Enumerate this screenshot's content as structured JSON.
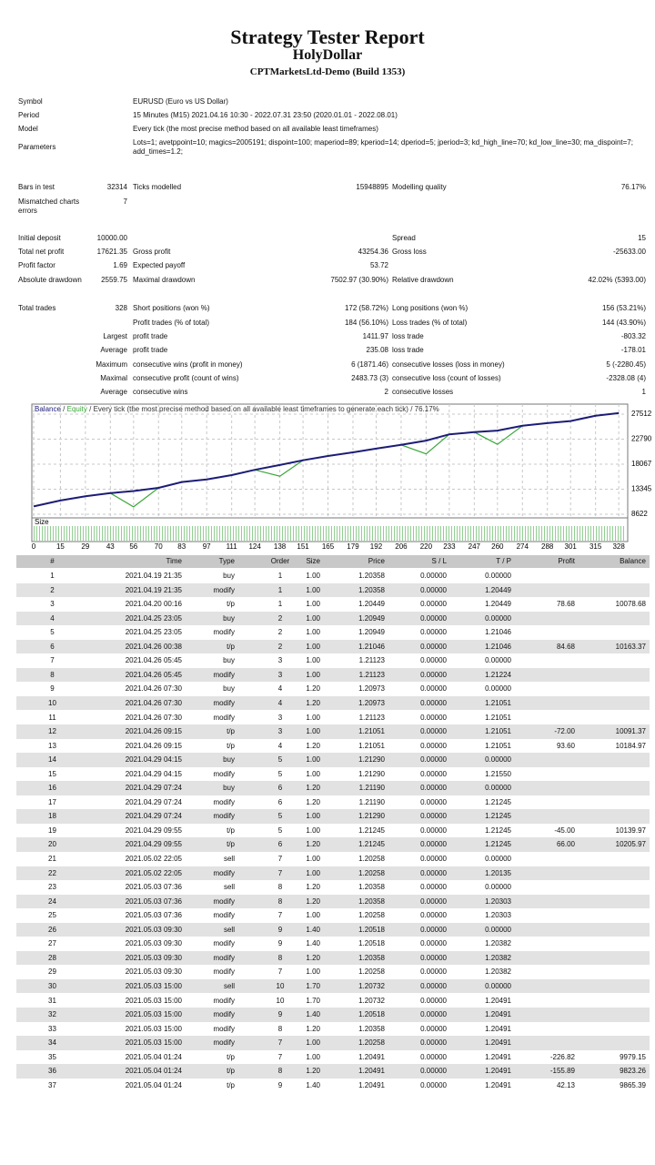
{
  "header": {
    "title": "Strategy Tester Report",
    "expert": "HolyDollar",
    "build": "CPTMarketsLtd-Demo (Build 1353)"
  },
  "settings": [
    [
      "Symbol",
      "EURUSD (Euro vs US Dollar)"
    ],
    [
      "Period",
      "15 Minutes (M15) 2021.04.16 10:30 - 2022.07.31 23:50 (2020.01.01 - 2022.08.01)"
    ],
    [
      "Model",
      "Every tick (the most precise method based on all available least timeframes)"
    ],
    [
      "Parameters",
      "Lots=1; avetppoint=10; magics=2005191; dispoint=100; maperiod=89; kperiod=14; dperiod=5; jperiod=3; kd_high_line=70; kd_low_line=30; ma_dispoint=7; add_times=1.2;"
    ]
  ],
  "stats": [
    [
      "Bars in test",
      "32314",
      "Ticks modelled",
      "15948895",
      "Modelling quality",
      "76.17%"
    ],
    [
      "Mismatched charts errors",
      "7",
      null,
      null,
      null,
      null
    ],
    [
      "Initial deposit",
      "10000.00",
      null,
      null,
      "Spread",
      "15"
    ],
    [
      "Total net profit",
      "17621.35",
      "Gross profit",
      "43254.36",
      "Gross loss",
      "-25633.00"
    ],
    [
      "Profit factor",
      "1.69",
      "Expected payoff",
      "53.72",
      null,
      null
    ],
    [
      "Absolute drawdown",
      "2559.75",
      "Maximal drawdown",
      "7502.97 (30.90%)",
      "Relative drawdown",
      "42.02% (5393.00)"
    ],
    [
      "Total trades",
      "328",
      "Short positions (won %)",
      "172 (58.72%)",
      "Long positions (won %)",
      "156 (53.21%)"
    ],
    [
      null,
      null,
      "Profit trades (% of total)",
      "184 (56.10%)",
      "Loss trades (% of total)",
      "144 (43.90%)"
    ],
    [
      null,
      "Largest",
      "profit trade",
      "1411.97",
      "loss trade",
      "-803.32"
    ],
    [
      null,
      "Average",
      "profit trade",
      "235.08",
      "loss trade",
      "-178.01"
    ],
    [
      null,
      "Maximum",
      "consecutive wins (profit in money)",
      "6 (1871.46)",
      "consecutive losses (loss in money)",
      "5 (-2280.45)"
    ],
    [
      null,
      "Maximal",
      "consecutive profit (count of wins)",
      "2483.73 (3)",
      "consecutive loss (count of losses)",
      "-2328.08 (4)"
    ],
    [
      null,
      "Average",
      "consecutive wins",
      "2",
      "consecutive losses",
      "1"
    ]
  ],
  "chart_data": {
    "type": "line",
    "legend_separator": "/",
    "caption": "Every tick (the most precise method based on all available least timeframes to generate each tick)",
    "quality": "76.17%",
    "size_label": "Size",
    "x": [
      0,
      15,
      29,
      43,
      56,
      70,
      83,
      97,
      111,
      124,
      138,
      151,
      165,
      179,
      192,
      206,
      220,
      233,
      247,
      260,
      274,
      288,
      301,
      315,
      328
    ],
    "series": [
      {
        "name": "Balance",
        "color": "#1c1c78",
        "values": [
          10100,
          11200,
          12000,
          12600,
          13000,
          13600,
          14700,
          15200,
          16000,
          17000,
          17900,
          18800,
          19600,
          20300,
          21000,
          21700,
          22500,
          23700,
          24100,
          24400,
          25300,
          25800,
          26200,
          27200,
          27700
        ]
      },
      {
        "name": "Equity",
        "color": "#3aa63a",
        "values": [
          10100,
          11200,
          12000,
          12600,
          10000,
          13600,
          14700,
          15200,
          16000,
          17000,
          15800,
          18800,
          19600,
          20300,
          21000,
          21700,
          20000,
          23700,
          24100,
          21800,
          25300,
          25800,
          26200,
          27200,
          27700
        ]
      }
    ],
    "xlim": [
      0,
      332
    ],
    "ylim": [
      8100,
      29050
    ],
    "xticks": [
      0,
      15,
      29,
      43,
      56,
      70,
      83,
      97,
      111,
      124,
      138,
      151,
      165,
      179,
      192,
      206,
      220,
      233,
      247,
      260,
      274,
      288,
      301,
      315,
      328
    ],
    "yticks": [
      8622,
      13345,
      18067,
      22790,
      27512
    ],
    "grid": true
  },
  "table": {
    "columns": [
      "#",
      "Time",
      "Type",
      "Order",
      "Size",
      "Price",
      "S / L",
      "T / P",
      "Profit",
      "Balance"
    ],
    "rows": [
      [
        "1",
        "2021.04.19 21:35",
        "buy",
        "1",
        "1.00",
        "1.20358",
        "0.00000",
        "0.00000",
        null,
        null
      ],
      [
        "2",
        "2021.04.19 21:35",
        "modify",
        "1",
        "1.00",
        "1.20358",
        "0.00000",
        "1.20449",
        null,
        null
      ],
      [
        "3",
        "2021.04.20 00:16",
        "t/p",
        "1",
        "1.00",
        "1.20449",
        "0.00000",
        "1.20449",
        "78.68",
        "10078.68"
      ],
      [
        "4",
        "2021.04.25 23:05",
        "buy",
        "2",
        "1.00",
        "1.20949",
        "0.00000",
        "0.00000",
        null,
        null
      ],
      [
        "5",
        "2021.04.25 23:05",
        "modify",
        "2",
        "1.00",
        "1.20949",
        "0.00000",
        "1.21046",
        null,
        null
      ],
      [
        "6",
        "2021.04.26 00:38",
        "t/p",
        "2",
        "1.00",
        "1.21046",
        "0.00000",
        "1.21046",
        "84.68",
        "10163.37"
      ],
      [
        "7",
        "2021.04.26 05:45",
        "buy",
        "3",
        "1.00",
        "1.21123",
        "0.00000",
        "0.00000",
        null,
        null
      ],
      [
        "8",
        "2021.04.26 05:45",
        "modify",
        "3",
        "1.00",
        "1.21123",
        "0.00000",
        "1.21224",
        null,
        null
      ],
      [
        "9",
        "2021.04.26 07:30",
        "buy",
        "4",
        "1.20",
        "1.20973",
        "0.00000",
        "0.00000",
        null,
        null
      ],
      [
        "10",
        "2021.04.26 07:30",
        "modify",
        "4",
        "1.20",
        "1.20973",
        "0.00000",
        "1.21051",
        null,
        null
      ],
      [
        "11",
        "2021.04.26 07:30",
        "modify",
        "3",
        "1.00",
        "1.21123",
        "0.00000",
        "1.21051",
        null,
        null
      ],
      [
        "12",
        "2021.04.26 09:15",
        "t/p",
        "3",
        "1.00",
        "1.21051",
        "0.00000",
        "1.21051",
        "-72.00",
        "10091.37"
      ],
      [
        "13",
        "2021.04.26 09:15",
        "t/p",
        "4",
        "1.20",
        "1.21051",
        "0.00000",
        "1.21051",
        "93.60",
        "10184.97"
      ],
      [
        "14",
        "2021.04.29 04:15",
        "buy",
        "5",
        "1.00",
        "1.21290",
        "0.00000",
        "0.00000",
        null,
        null
      ],
      [
        "15",
        "2021.04.29 04:15",
        "modify",
        "5",
        "1.00",
        "1.21290",
        "0.00000",
        "1.21550",
        null,
        null
      ],
      [
        "16",
        "2021.04.29 07:24",
        "buy",
        "6",
        "1.20",
        "1.21190",
        "0.00000",
        "0.00000",
        null,
        null
      ],
      [
        "17",
        "2021.04.29 07:24",
        "modify",
        "6",
        "1.20",
        "1.21190",
        "0.00000",
        "1.21245",
        null,
        null
      ],
      [
        "18",
        "2021.04.29 07:24",
        "modify",
        "5",
        "1.00",
        "1.21290",
        "0.00000",
        "1.21245",
        null,
        null
      ],
      [
        "19",
        "2021.04.29 09:55",
        "t/p",
        "5",
        "1.00",
        "1.21245",
        "0.00000",
        "1.21245",
        "-45.00",
        "10139.97"
      ],
      [
        "20",
        "2021.04.29 09:55",
        "t/p",
        "6",
        "1.20",
        "1.21245",
        "0.00000",
        "1.21245",
        "66.00",
        "10205.97"
      ],
      [
        "21",
        "2021.05.02 22:05",
        "sell",
        "7",
        "1.00",
        "1.20258",
        "0.00000",
        "0.00000",
        null,
        null
      ],
      [
        "22",
        "2021.05.02 22:05",
        "modify",
        "7",
        "1.00",
        "1.20258",
        "0.00000",
        "1.20135",
        null,
        null
      ],
      [
        "23",
        "2021.05.03 07:36",
        "sell",
        "8",
        "1.20",
        "1.20358",
        "0.00000",
        "0.00000",
        null,
        null
      ],
      [
        "24",
        "2021.05.03 07:36",
        "modify",
        "8",
        "1.20",
        "1.20358",
        "0.00000",
        "1.20303",
        null,
        null
      ],
      [
        "25",
        "2021.05.03 07:36",
        "modify",
        "7",
        "1.00",
        "1.20258",
        "0.00000",
        "1.20303",
        null,
        null
      ],
      [
        "26",
        "2021.05.03 09:30",
        "sell",
        "9",
        "1.40",
        "1.20518",
        "0.00000",
        "0.00000",
        null,
        null
      ],
      [
        "27",
        "2021.05.03 09:30",
        "modify",
        "9",
        "1.40",
        "1.20518",
        "0.00000",
        "1.20382",
        null,
        null
      ],
      [
        "28",
        "2021.05.03 09:30",
        "modify",
        "8",
        "1.20",
        "1.20358",
        "0.00000",
        "1.20382",
        null,
        null
      ],
      [
        "29",
        "2021.05.03 09:30",
        "modify",
        "7",
        "1.00",
        "1.20258",
        "0.00000",
        "1.20382",
        null,
        null
      ],
      [
        "30",
        "2021.05.03 15:00",
        "sell",
        "10",
        "1.70",
        "1.20732",
        "0.00000",
        "0.00000",
        null,
        null
      ],
      [
        "31",
        "2021.05.03 15:00",
        "modify",
        "10",
        "1.70",
        "1.20732",
        "0.00000",
        "1.20491",
        null,
        null
      ],
      [
        "32",
        "2021.05.03 15:00",
        "modify",
        "9",
        "1.40",
        "1.20518",
        "0.00000",
        "1.20491",
        null,
        null
      ],
      [
        "33",
        "2021.05.03 15:00",
        "modify",
        "8",
        "1.20",
        "1.20358",
        "0.00000",
        "1.20491",
        null,
        null
      ],
      [
        "34",
        "2021.05.03 15:00",
        "modify",
        "7",
        "1.00",
        "1.20258",
        "0.00000",
        "1.20491",
        null,
        null
      ],
      [
        "35",
        "2021.05.04 01:24",
        "t/p",
        "7",
        "1.00",
        "1.20491",
        "0.00000",
        "1.20491",
        "-226.82",
        "9979.15"
      ],
      [
        "36",
        "2021.05.04 01:24",
        "t/p",
        "8",
        "1.20",
        "1.20491",
        "0.00000",
        "1.20491",
        "-155.89",
        "9823.26"
      ],
      [
        "37",
        "2021.05.04 01:24",
        "t/p",
        "9",
        "1.40",
        "1.20491",
        "0.00000",
        "1.20491",
        "42.13",
        "9865.39"
      ]
    ]
  }
}
